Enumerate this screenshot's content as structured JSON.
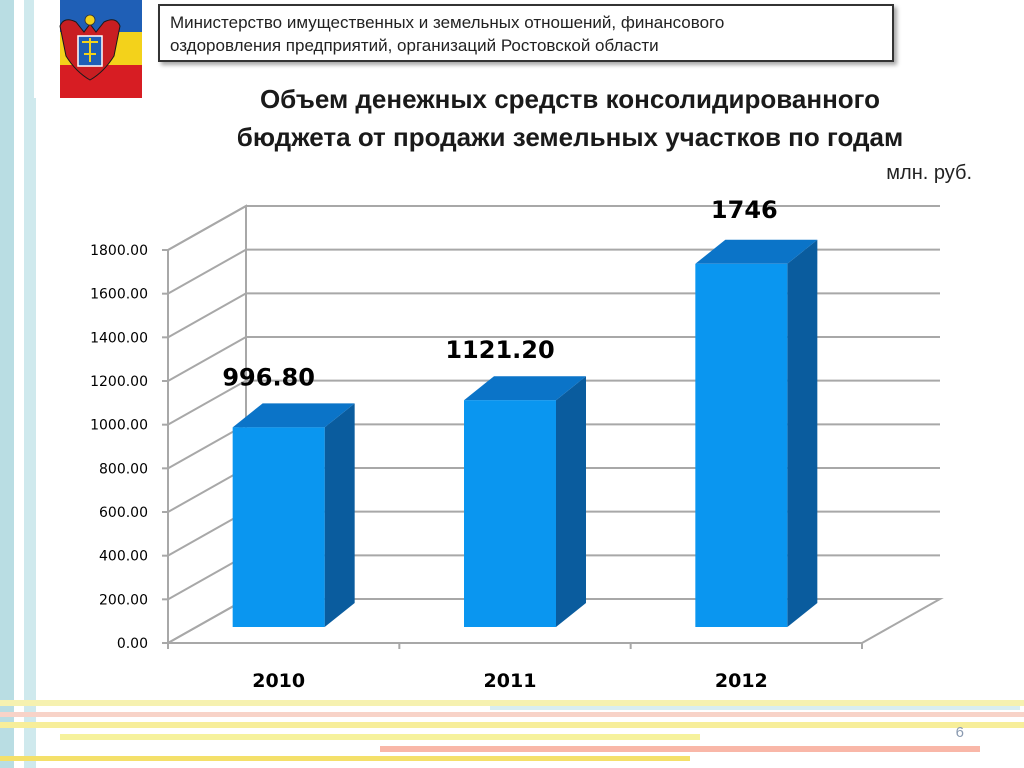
{
  "header": {
    "ministry_line1": "Министерство имущественных и земельных отношений, финансового",
    "ministry_line2": "оздоровления предприятий, организаций Ростовской области"
  },
  "title_line1": "Объем денежных средств консолидированного",
  "title_line2": "бюджета от продажи земельных участков по годам",
  "unit_label": "млн. руб.",
  "page_number": "6",
  "colors": {
    "bar_front": "#0a96f0",
    "bar_side": "#0a5c9e",
    "bar_top": "#0b74c8",
    "grid": "#a8a8a8"
  },
  "chart_data": {
    "type": "bar",
    "categories": [
      "2010",
      "2011",
      "2012"
    ],
    "values": [
      996.8,
      1121.2,
      1746
    ],
    "data_labels": [
      "996.80",
      "1121.20",
      "1746"
    ],
    "ylim": [
      0,
      1800
    ],
    "yticks": [
      "0.00",
      "200.00",
      "400.00",
      "600.00",
      "800.00",
      "1000.00",
      "1200.00",
      "1400.00",
      "1600.00",
      "1800.00"
    ],
    "grid": true,
    "title": "Объем денежных средств консолидированного бюджета от продажи земельных участков по годам",
    "ylabel": "млн. руб."
  }
}
